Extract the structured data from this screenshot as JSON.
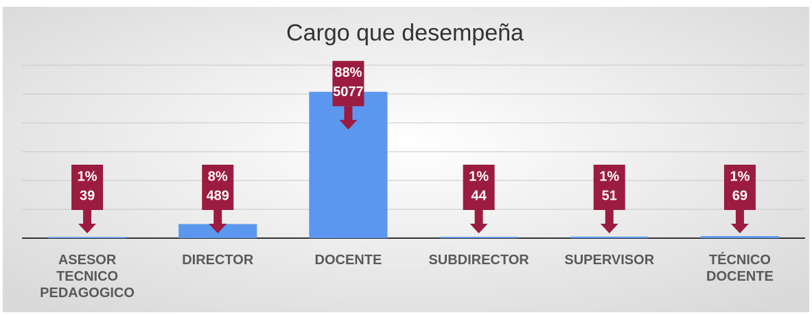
{
  "chart_data": {
    "type": "bar",
    "title": "Cargo que desempeña",
    "categories": [
      "ASESOR TECNICO PEDAGOGICO",
      "DIRECTOR",
      "DOCENTE",
      "SUBDIRECTOR",
      "SUPERVISOR",
      "TÉCNICO DOCENTE"
    ],
    "values": [
      39,
      489,
      5077,
      44,
      51,
      69
    ],
    "share_labels": [
      "1%",
      "8%",
      "88%",
      "1%",
      "1%",
      "1%"
    ],
    "color": "#5b97ee",
    "label_color": "#9b1c40",
    "ylim": [
      0,
      6000
    ],
    "yticks": [
      0,
      1000,
      2000,
      3000,
      4000,
      5000,
      6000
    ],
    "grid": true
  }
}
